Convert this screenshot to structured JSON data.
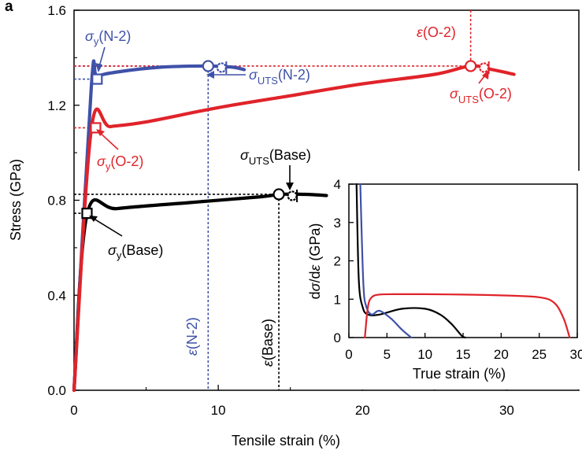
{
  "panel_label": "a",
  "chart_data": {
    "type": "line",
    "title": "",
    "xlabel": "Tensile strain (%)",
    "ylabel": "Stress (GPa)",
    "xlim": [
      0,
      35
    ],
    "ylim": [
      0,
      1.6
    ],
    "xticks": [
      "0",
      "10",
      "20",
      "30"
    ],
    "yticks": [
      "0.0",
      "0.4",
      "0.8",
      "1.2",
      "1.6"
    ],
    "grid": false,
    "colors": {
      "base": "#000000",
      "n2": "#3f51a8",
      "o2": "#e0232a"
    },
    "series": [
      {
        "name": "Base",
        "x": [
          0,
          0.9,
          3,
          8,
          13,
          14.2,
          16,
          17.5
        ],
        "y": [
          0,
          0.74,
          0.765,
          0.79,
          0.815,
          0.825,
          0.825,
          0.82
        ],
        "yield": {
          "x": 0.9,
          "y": 0.745,
          "label_sigma": "σ",
          "label_sub": "y",
          "label_suffix": "(Base)"
        },
        "uts": {
          "x": 14.2,
          "y": 0.825,
          "label_sigma": "σ",
          "label_sub": "UTS",
          "label_suffix": "(Base)"
        },
        "fracture_strain": {
          "x": 14.2,
          "label_eps": "ε",
          "label_suffix": "(Base)"
        }
      },
      {
        "name": "N-2",
        "x": [
          0,
          1.2,
          1.6,
          3,
          6,
          9.3,
          11,
          11.8
        ],
        "y": [
          0,
          1.28,
          1.32,
          1.34,
          1.36,
          1.365,
          1.36,
          1.35
        ],
        "yield": {
          "x": 1.6,
          "y": 1.31,
          "label_sigma": "σ",
          "label_sub": "y",
          "label_suffix": "(N-2)"
        },
        "uts": {
          "x": 9.3,
          "y": 1.365,
          "label_sigma": "σ",
          "label_sub": "UTS",
          "label_suffix": "(N-2)"
        },
        "fracture_strain": {
          "x": 9.3,
          "label_eps": "ε",
          "label_suffix": "(N-2)"
        }
      },
      {
        "name": "O-2",
        "x": [
          0,
          1.2,
          2.5,
          5,
          10,
          15,
          20,
          25,
          27.5,
          29,
          30.5
        ],
        "y": [
          0,
          1.1,
          1.11,
          1.13,
          1.19,
          1.24,
          1.29,
          1.33,
          1.365,
          1.35,
          1.33
        ],
        "yield": {
          "x": 1.5,
          "y": 1.105,
          "label_sigma": "σ",
          "label_sub": "y",
          "label_suffix": "(O-2)"
        },
        "uts": {
          "x": 27.5,
          "y": 1.365,
          "label_sigma": "σ",
          "label_sub": "UTS",
          "label_suffix": "(O-2)"
        },
        "fracture_strain": {
          "x": 27.5,
          "label_eps": "ε",
          "label_suffix": "(O-2)"
        }
      }
    ],
    "inset": {
      "type": "line",
      "xlabel": "True strain (%)",
      "ylabel_prefix": "d",
      "ylabel_sigma": "σ",
      "ylabel_mid": "/d",
      "ylabel_eps": "ε",
      "ylabel_unit": " (GPa)",
      "xlim": [
        0,
        30
      ],
      "ylim": [
        0,
        4
      ],
      "xticks": [
        "0",
        "5",
        "10",
        "15",
        "20",
        "25",
        "30"
      ],
      "yticks": [
        "0",
        "1",
        "2",
        "3",
        "4"
      ],
      "series": [
        {
          "name": "Base",
          "x": [
            1.0,
            1.3,
            1.8,
            2.5,
            4,
            7,
            10,
            12,
            13.5,
            14.8,
            15.3
          ],
          "y": [
            4,
            1.5,
            0.8,
            0.6,
            0.6,
            0.75,
            0.75,
            0.6,
            0.35,
            0.05,
            0
          ]
        },
        {
          "name": "N-2",
          "x": [
            1.5,
            1.9,
            2.3,
            3,
            4,
            5.5,
            7,
            8.2
          ],
          "y": [
            4,
            1.4,
            0.8,
            0.6,
            0.7,
            0.5,
            0.2,
            0
          ]
        },
        {
          "name": "O-2",
          "x": [
            2.1,
            2.5,
            3.0,
            4,
            6,
            10,
            15,
            20,
            25,
            27,
            28.2,
            29
          ],
          "y": [
            0,
            0.8,
            1.05,
            1.12,
            1.13,
            1.13,
            1.12,
            1.1,
            1.05,
            0.9,
            0.5,
            0
          ]
        }
      ]
    }
  }
}
